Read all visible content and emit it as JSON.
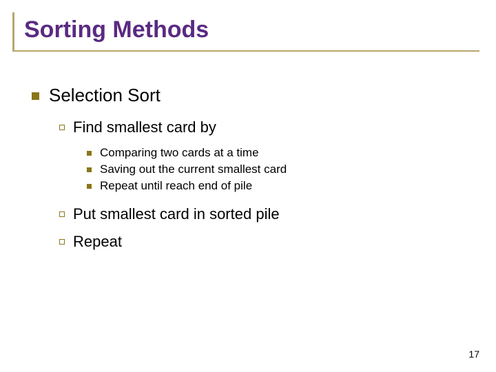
{
  "title": "Sorting Methods",
  "colors": {
    "title_color": "#5a2a82",
    "accent_border": "#b8a76b",
    "bullet_color": "#8a7518",
    "text_color": "#000000",
    "background": "#ffffff"
  },
  "typography": {
    "title_fontsize": 34,
    "level1_fontsize": 26,
    "level2_fontsize": 22,
    "level3_fontsize": 17,
    "pagenum_fontsize": 14,
    "font_family": "Arial"
  },
  "content": {
    "level1": "Selection Sort",
    "level2a": "Find smallest card by",
    "level3_items": [
      "Comparing two cards at a time",
      "Saving out the current smallest card",
      "Repeat until reach end of pile"
    ],
    "level2b": "Put smallest card in sorted pile",
    "level2c": "Repeat"
  },
  "page_number": "17"
}
